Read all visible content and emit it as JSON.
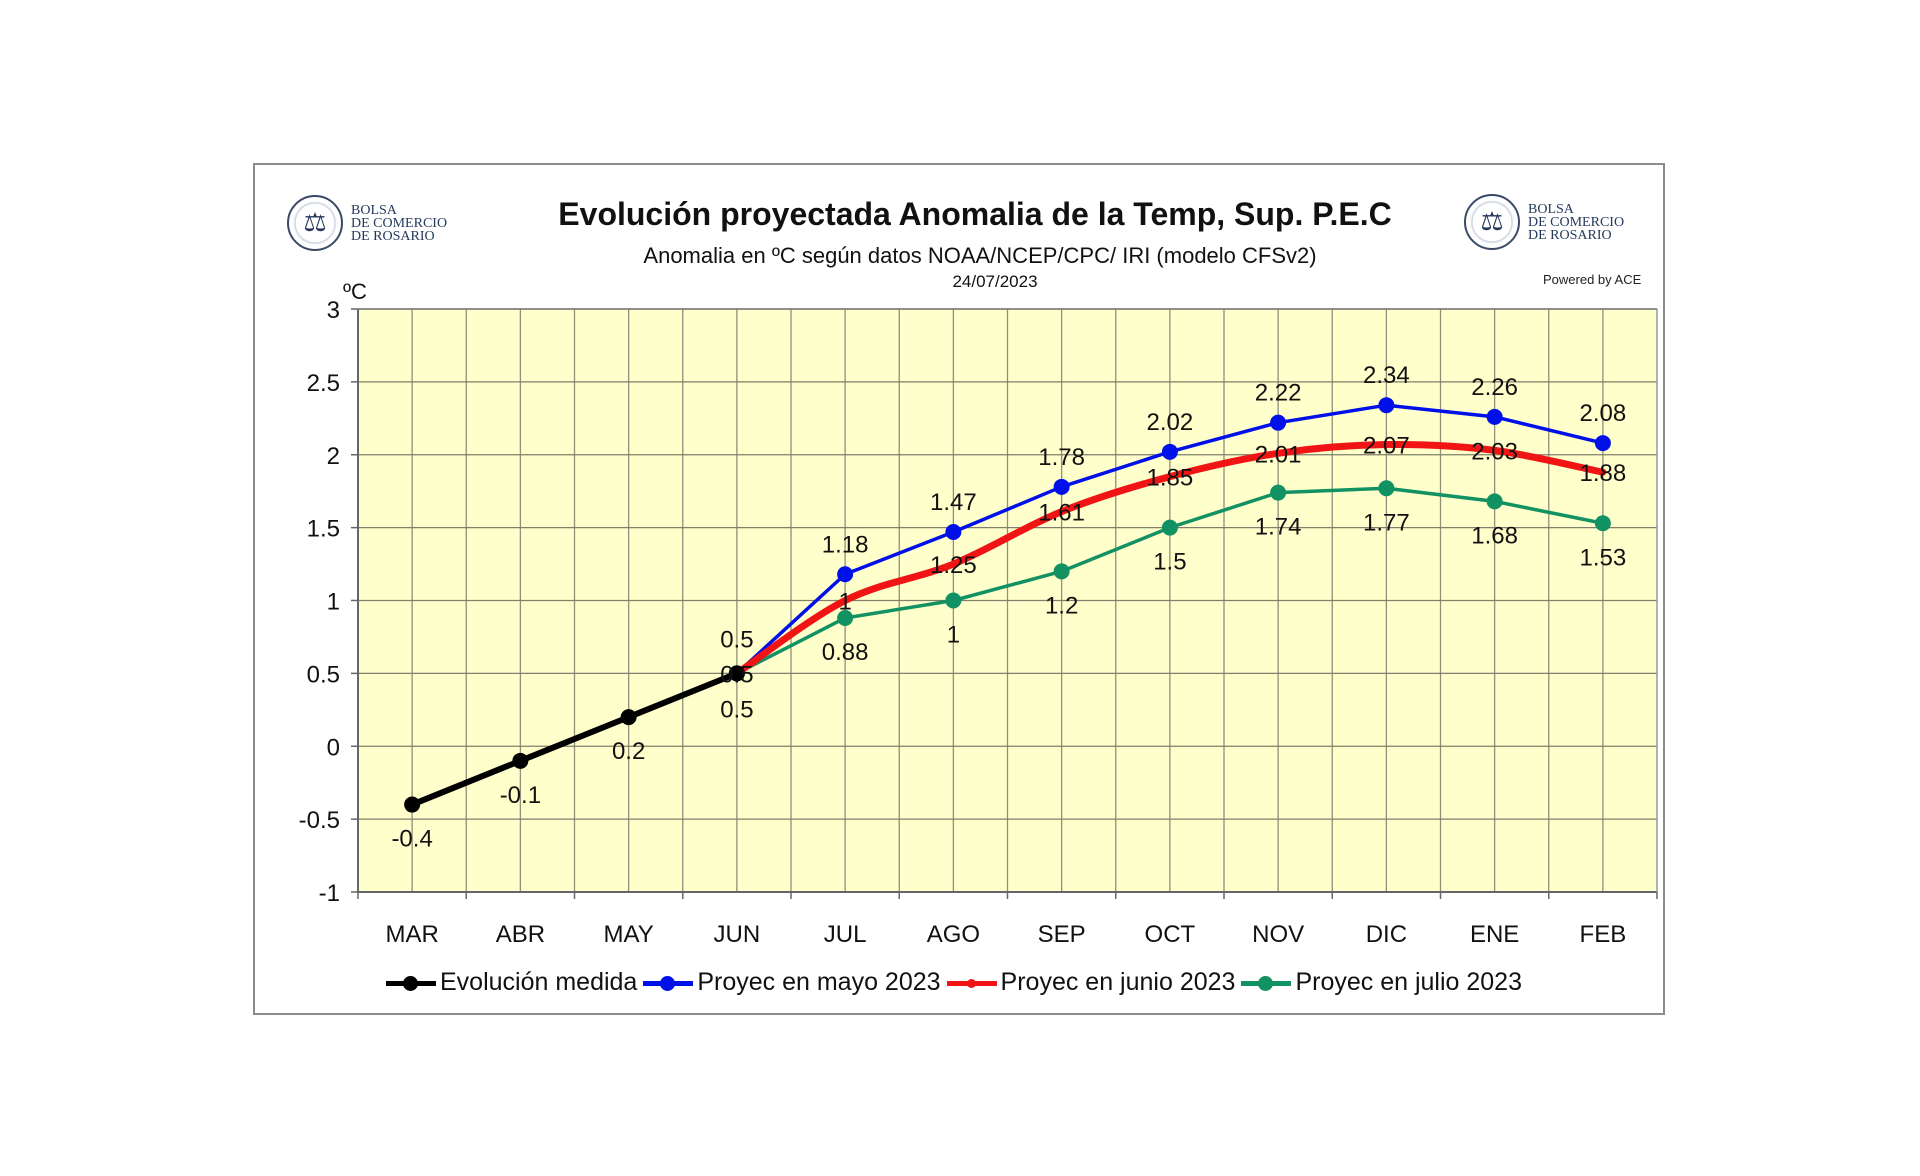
{
  "header": {
    "title": "Evolución proyectada Anomalia de la Temp, Sup.  P.E.C",
    "subtitle": "Anomalia en ºC según datos NOAA/NCEP/CPC/ IRI (modelo CFSv2)",
    "date": "24/07/2023",
    "logo_left": {
      "line1": "BOLSA",
      "line2": "DE COMERCIO",
      "line3": "DE ROSARIO"
    },
    "logo_right": {
      "line1": "BOLSA",
      "line2": "DE COMERCIO",
      "line3": "DE ROSARIO"
    },
    "powered_by": "Powered by ACE"
  },
  "chart_data": {
    "type": "line",
    "title": "Evolución proyectada Anomalia de la Temp, Sup.  P.E.C",
    "subtitle": "Anomalia en ºC según datos NOAA/NCEP/CPC/ IRI (modelo CFSv2)",
    "xlabel": "",
    "ylabel": "ºC",
    "ylim": [
      -1,
      3
    ],
    "yticks": [
      -1,
      -0.5,
      0,
      0.5,
      1,
      1.5,
      2,
      2.5,
      3
    ],
    "ytick_labels": [
      "-1",
      "-0.5",
      "0",
      "0.5",
      "1",
      "1.5",
      "2",
      "2.5",
      "3"
    ],
    "grid": true,
    "plot_background": "#FFFFCC",
    "legend_position": "bottom",
    "categories": [
      "MAR",
      "ABR",
      "MAY",
      "JUN",
      "JUL",
      "AGO",
      "SEP",
      "OCT",
      "NOV",
      "DIC",
      "ENE",
      "FEB"
    ],
    "series": [
      {
        "name": "Evolución medida",
        "color": "#000000",
        "markers": true,
        "values": [
          -0.4,
          -0.1,
          0.2,
          0.5,
          null,
          null,
          null,
          null,
          null,
          null,
          null,
          null
        ],
        "labels": [
          "-0.4",
          "-0.1",
          "0.2",
          "0.5",
          null,
          null,
          null,
          null,
          null,
          null,
          null,
          null
        ],
        "label_pos": [
          "below",
          "below",
          "below",
          "below",
          null,
          null,
          null,
          null,
          null,
          null,
          null,
          null
        ]
      },
      {
        "name": "Proyec en mayo 2023",
        "color": "#0010E8",
        "markers": true,
        "values": [
          null,
          null,
          null,
          0.5,
          1.18,
          1.47,
          1.78,
          2.02,
          2.22,
          2.34,
          2.26,
          2.08
        ],
        "labels": [
          null,
          null,
          null,
          "0.5",
          "1.18",
          "1.47",
          "1.78",
          "2.02",
          "2.22",
          "2.34",
          "2.26",
          "2.08"
        ],
        "label_pos": [
          null,
          null,
          null,
          "above",
          "above",
          "above",
          "above",
          "above",
          "above",
          "above",
          "above",
          "above"
        ]
      },
      {
        "name": "Proyec en junio 2023",
        "color": "#F01414",
        "markers": false,
        "values": [
          null,
          null,
          null,
          0.5,
          1.0,
          1.25,
          1.61,
          1.85,
          2.01,
          2.07,
          2.03,
          1.88
        ],
        "labels": [
          null,
          null,
          null,
          "0.5",
          "1",
          "1.25",
          "1.61",
          "1.85",
          "2.01",
          "2.07",
          "2.03",
          "1.88"
        ],
        "label_pos": [
          null,
          null,
          null,
          "center",
          "center",
          "center",
          "center",
          "center",
          "center",
          "center",
          "center",
          "center"
        ]
      },
      {
        "name": "Proyec en julio 2023",
        "color": "#129163",
        "markers": true,
        "values": [
          null,
          null,
          null,
          0.5,
          0.88,
          1.0,
          1.2,
          1.5,
          1.74,
          1.77,
          1.68,
          1.53
        ],
        "labels": [
          null,
          null,
          null,
          null,
          "0.88",
          "1",
          "1.2",
          "1.5",
          "1.74",
          "1.77",
          "1.68",
          "1.53"
        ],
        "label_pos": [
          null,
          null,
          null,
          null,
          "below",
          "below",
          "below",
          "below",
          "below",
          "below",
          "below",
          "below"
        ]
      }
    ]
  }
}
